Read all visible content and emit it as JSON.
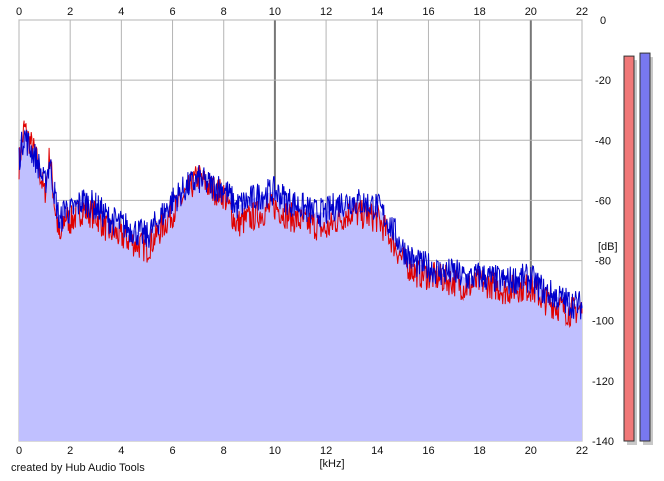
{
  "chart_data": {
    "type": "line",
    "title": "",
    "xlabel": "[kHz]",
    "ylabel": "[dB]",
    "xlim": [
      0,
      22
    ],
    "ylim": [
      -140,
      0
    ],
    "grid": true,
    "x_ticks": [
      0,
      2,
      4,
      6,
      8,
      10,
      12,
      14,
      16,
      18,
      20,
      22
    ],
    "y_ticks": [
      0,
      -20,
      -40,
      -60,
      -80,
      -100,
      -120,
      -140
    ],
    "y_tick_labels": [
      "0",
      "-20",
      "-40",
      "-60",
      "-80",
      "-100",
      "-120",
      "-140"
    ],
    "series": [
      {
        "color": "#e00000",
        "x": [
          0,
          0.2,
          0.4,
          0.6,
          0.8,
          1.0,
          1.2,
          1.4,
          1.6,
          1.8,
          2.0,
          2.5,
          3.0,
          3.5,
          4.0,
          4.5,
          5.0,
          5.5,
          6.0,
          6.5,
          7.0,
          7.5,
          8.0,
          8.5,
          9.0,
          9.5,
          10.0,
          10.5,
          11.0,
          11.5,
          12.0,
          12.5,
          13.0,
          13.5,
          14.0,
          14.5,
          15.0,
          15.5,
          16.0,
          16.5,
          17.0,
          17.5,
          18.0,
          18.5,
          19.0,
          19.5,
          20.0,
          20.5,
          21.0,
          21.5,
          22.0
        ],
        "values": [
          -48,
          -36,
          -40,
          -44,
          -50,
          -58,
          -45,
          -62,
          -74,
          -65,
          -67,
          -63,
          -65,
          -70,
          -72,
          -74,
          -76,
          -70,
          -64,
          -58,
          -52,
          -56,
          -58,
          -68,
          -66,
          -64,
          -62,
          -65,
          -67,
          -68,
          -70,
          -66,
          -64,
          -65,
          -66,
          -72,
          -80,
          -84,
          -85,
          -86,
          -87,
          -89,
          -87,
          -88,
          -90,
          -89,
          -89,
          -93,
          -95,
          -97,
          -96
        ]
      },
      {
        "color": "#0000cc",
        "x": [
          0,
          0.2,
          0.4,
          0.6,
          0.8,
          1.0,
          1.2,
          1.4,
          1.6,
          1.8,
          2.0,
          2.5,
          3.0,
          3.5,
          4.0,
          4.5,
          5.0,
          5.5,
          6.0,
          6.5,
          7.0,
          7.5,
          8.0,
          8.5,
          9.0,
          9.5,
          10.0,
          10.5,
          11.0,
          11.5,
          12.0,
          12.5,
          13.0,
          13.5,
          14.0,
          14.5,
          15.0,
          15.5,
          16.0,
          16.5,
          17.0,
          17.5,
          18.0,
          18.5,
          19.0,
          19.5,
          20.0,
          20.5,
          21.0,
          21.5,
          22.0
        ],
        "values": [
          -46,
          -38,
          -42,
          -45,
          -49,
          -55,
          -47,
          -58,
          -68,
          -62,
          -64,
          -60,
          -62,
          -66,
          -68,
          -70,
          -72,
          -66,
          -60,
          -56,
          -53,
          -55,
          -56,
          -62,
          -60,
          -58,
          -57,
          -60,
          -62,
          -64,
          -64,
          -61,
          -60,
          -61,
          -62,
          -68,
          -76,
          -81,
          -82,
          -84,
          -84,
          -86,
          -85,
          -86,
          -87,
          -86,
          -86,
          -90,
          -92,
          -94,
          -95
        ]
      }
    ],
    "fill_color": "#c0c0ff",
    "fill_series": "envelope",
    "level_meters": [
      {
        "color": "#f07878",
        "level_db": -12
      },
      {
        "color": "#7878f0",
        "level_db": -11
      }
    ]
  },
  "footer": {
    "credit": "created by Hub Audio Tools"
  }
}
